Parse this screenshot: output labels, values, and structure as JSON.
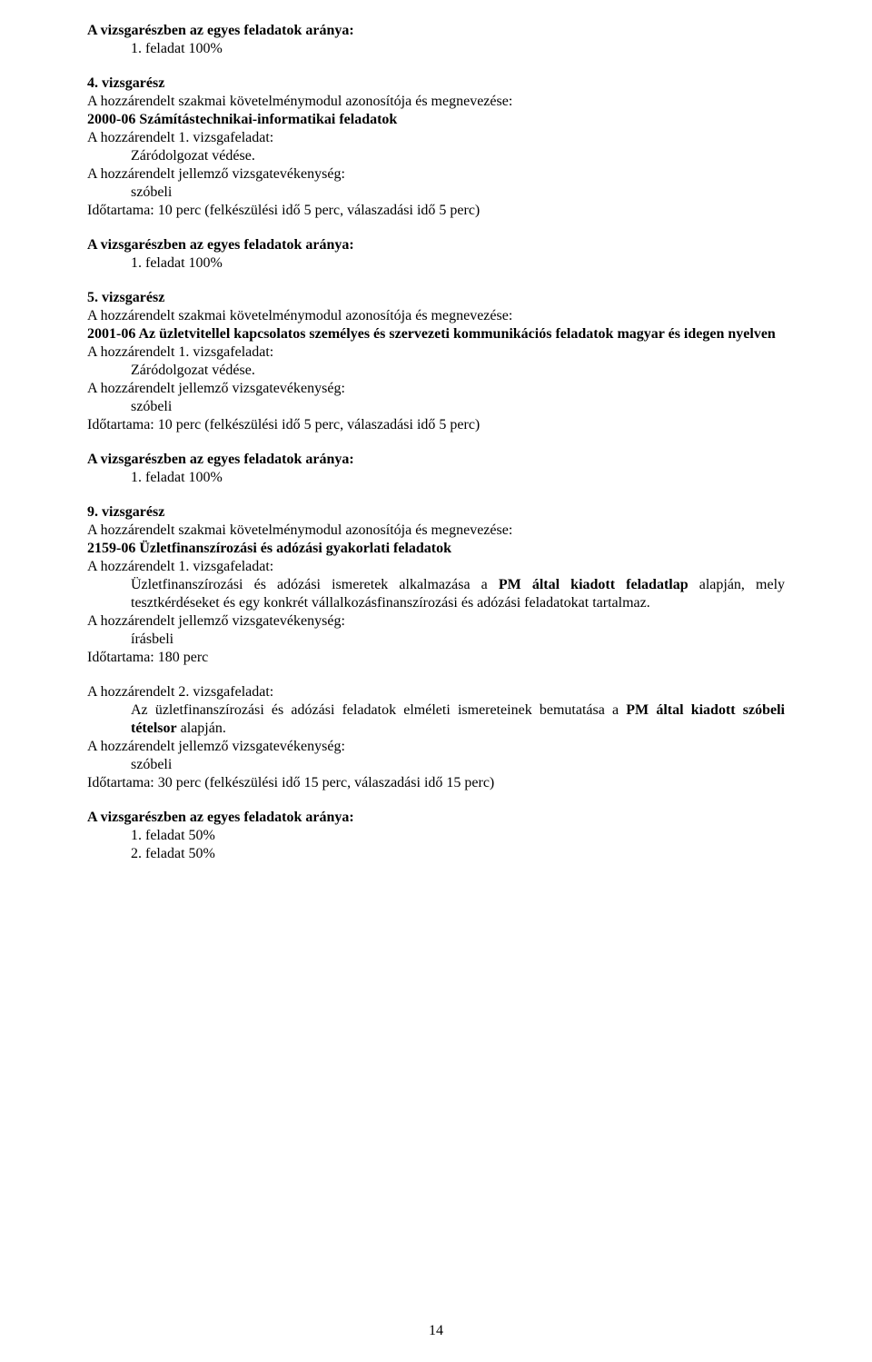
{
  "s1": {
    "heading": "A vizsgarészben az egyes feladatok aránya:",
    "ratio": "1. feladat   100%"
  },
  "s4": {
    "title": "4. vizsgarész",
    "l1": "A hozzárendelt szakmai követelménymodul azonosítója és megnevezése:",
    "l2": "2000-06  Számítástechnikai-informatikai feladatok",
    "l3": "A hozzárendelt 1. vizsgafeladat:",
    "l4": "Záródolgozat védése.",
    "l5": "A hozzárendelt jellemző vizsgatevékenység:",
    "l6": "szóbeli",
    "l7": "Időtartama:  10 perc (felkészülési idő 5 perc, válaszadási idő 5 perc)",
    "heading": "A vizsgarészben az egyes feladatok aránya:",
    "ratio": "1. feladat   100%"
  },
  "s5": {
    "title": "5. vizsgarész",
    "l1": "A hozzárendelt szakmai követelménymodul azonosítója és megnevezése:",
    "l2": "2001-06  Az  üzletvitellel  kapcsolatos  személyes  és  szervezeti  kommunikációs  feladatok magyar és idegen nyelven",
    "l3": "A hozzárendelt 1. vizsgafeladat:",
    "l4": "Záródolgozat védése.",
    "l5": "A hozzárendelt jellemző vizsgatevékenység:",
    "l6": "szóbeli",
    "l7": "Időtartama:  10 perc (felkészülési idő 5 perc, válaszadási idő 5 perc)",
    "heading": "A vizsgarészben az egyes feladatok aránya:",
    "ratio": "1. feladat   100%"
  },
  "s9": {
    "title": "9. vizsgarész",
    "l1": "A hozzárendelt szakmai követelménymodul azonosítója és megnevezése:",
    "l2": "2159-06  Üzletfinanszírozási és adózási gyakorlati feladatok",
    "l3": "A hozzárendelt 1. vizsgafeladat:",
    "l4a": "Üzletfinanszírozási és adózási ismeretek alkalmazása a ",
    "l4b": "PM által kiadott feladatlap",
    "l4c": " alapján,  mely  tesztkérdéseket  és  egy  konkrét  vállalkozásfinanszírozási  és  adózási feladatokat tartalmaz.",
    "l5": "A hozzárendelt jellemző vizsgatevékenység:",
    "l6": "írásbeli",
    "l7": "Időtartama:  180 perc",
    "l8": "A hozzárendelt 2. vizsgafeladat:",
    "l9a": "Az üzletfinanszírozási és adózási feladatok elméleti ismereteinek bemutatása a ",
    "l9b": "PM által kiadott szóbeli tételsor",
    "l9c": " alapján.",
    "l10": "A hozzárendelt jellemző vizsgatevékenység:",
    "l11": "szóbeli",
    "l12": "Időtartama:  30 perc (felkészülési idő 15 perc, válaszadási idő 15 perc)",
    "heading": "A vizsgarészben az egyes feladatok aránya:",
    "ratio1": "1. feladat   50%",
    "ratio2": "2. feladat   50%"
  },
  "pageNumber": "14"
}
